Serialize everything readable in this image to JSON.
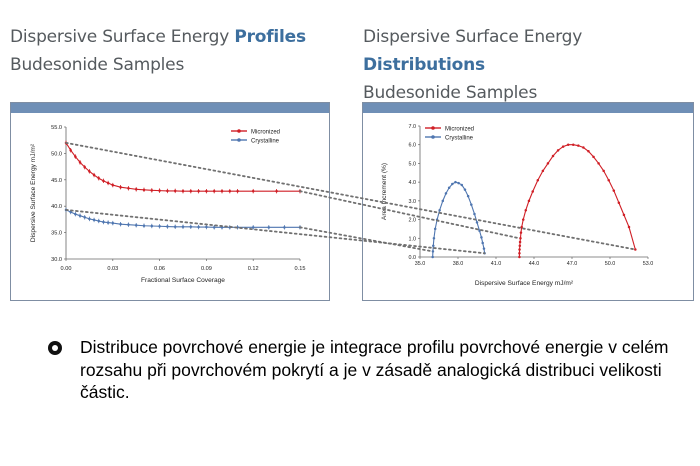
{
  "headings": {
    "left": {
      "line1_prefix": "Dispersive Surface Energy ",
      "line1_keyword": "Profiles",
      "line2": "Budesonide Samples"
    },
    "right": {
      "line1_prefix": "Dispersive Surface Energy ",
      "line1_keyword": "Distributions",
      "line2": "Budesonide Samples"
    }
  },
  "colors": {
    "micronized": "#d01f26",
    "crystalline": "#4f76b0",
    "panel_bar": "#6f8fb6",
    "heading_keyword": "#3d6f9e",
    "connector": "#707070"
  },
  "chart_data": [
    {
      "type": "line",
      "xlabel": "Fractional Surface Coverage",
      "ylabel": "Dispersive Surface Energy  mJ/m²",
      "xlim": [
        0.0,
        0.15
      ],
      "ylim": [
        30.0,
        55.0
      ],
      "xticks": [
        "0.00",
        "0.03",
        "0.06",
        "0.09",
        "0.12",
        "0.15"
      ],
      "yticks": [
        "30.0",
        "35.0",
        "40.0",
        "45.0",
        "50.0",
        "55.0"
      ],
      "legend_position": "top-right",
      "series": [
        {
          "name": "Micronized",
          "color": "#d01f26",
          "x": [
            0.0,
            0.003,
            0.006,
            0.009,
            0.012,
            0.015,
            0.018,
            0.021,
            0.024,
            0.027,
            0.03,
            0.035,
            0.04,
            0.045,
            0.05,
            0.055,
            0.06,
            0.065,
            0.07,
            0.075,
            0.08,
            0.085,
            0.09,
            0.095,
            0.1,
            0.105,
            0.11,
            0.12,
            0.135,
            0.15
          ],
          "y": [
            52.0,
            50.6,
            49.4,
            48.3,
            47.4,
            46.6,
            45.9,
            45.3,
            44.8,
            44.4,
            44.0,
            43.6,
            43.4,
            43.2,
            43.1,
            43.0,
            42.95,
            42.9,
            42.9,
            42.85,
            42.85,
            42.85,
            42.85,
            42.85,
            42.85,
            42.85,
            42.85,
            42.85,
            42.85,
            42.85
          ]
        },
        {
          "name": "Crystalline",
          "color": "#4f76b0",
          "x": [
            0.0,
            0.003,
            0.006,
            0.009,
            0.012,
            0.015,
            0.018,
            0.021,
            0.024,
            0.027,
            0.03,
            0.035,
            0.04,
            0.045,
            0.05,
            0.055,
            0.06,
            0.065,
            0.07,
            0.075,
            0.08,
            0.085,
            0.09,
            0.095,
            0.1,
            0.105,
            0.11,
            0.12,
            0.13,
            0.14,
            0.15
          ],
          "y": [
            39.3,
            38.9,
            38.5,
            38.2,
            37.9,
            37.6,
            37.4,
            37.2,
            37.0,
            36.9,
            36.8,
            36.6,
            36.5,
            36.4,
            36.3,
            36.25,
            36.2,
            36.15,
            36.1,
            36.1,
            36.1,
            36.05,
            36.05,
            36.0,
            36.0,
            36.0,
            36.0,
            36.0,
            36.0,
            36.0,
            36.0
          ]
        }
      ]
    },
    {
      "type": "line",
      "xlabel": "Dispersive Surface Energy  mJ/m²",
      "ylabel": "Area Increment (%)",
      "xlim": [
        35.0,
        53.0
      ],
      "ylim": [
        0.0,
        7.0
      ],
      "xticks": [
        "35.0",
        "38.0",
        "41.0",
        "44.0",
        "47.0",
        "50.0",
        "53.0"
      ],
      "yticks": [
        "0.0",
        "1.0",
        "2.0",
        "3.0",
        "4.0",
        "5.0",
        "6.0",
        "7.0"
      ],
      "legend_position": "top-left",
      "series": [
        {
          "name": "Micronized",
          "color": "#d01f26",
          "x": [
            42.85,
            42.85,
            42.86,
            42.88,
            42.9,
            42.93,
            42.97,
            43.03,
            43.15,
            43.35,
            43.6,
            43.9,
            44.3,
            44.7,
            45.1,
            45.5,
            45.9,
            46.3,
            46.7,
            47.1,
            47.5,
            47.9,
            48.3,
            48.7,
            49.1,
            49.5,
            49.9,
            50.3,
            50.7,
            51.1,
            51.5,
            52.0
          ],
          "y": [
            0.0,
            0.2,
            0.4,
            0.6,
            0.8,
            1.0,
            1.3,
            1.6,
            2.0,
            2.5,
            3.0,
            3.5,
            4.1,
            4.6,
            5.0,
            5.4,
            5.7,
            5.9,
            6.0,
            6.0,
            5.95,
            5.85,
            5.65,
            5.35,
            5.0,
            4.6,
            4.1,
            3.55,
            2.9,
            2.25,
            1.6,
            0.4
          ]
        },
        {
          "name": "Crystalline",
          "color": "#4f76b0",
          "x": [
            36.0,
            36.02,
            36.05,
            36.1,
            36.2,
            36.35,
            36.55,
            36.8,
            37.05,
            37.3,
            37.55,
            37.8,
            38.05,
            38.3,
            38.55,
            38.8,
            39.05,
            39.3,
            39.5,
            39.7,
            39.85,
            39.95,
            40.05,
            40.1
          ],
          "y": [
            0.0,
            0.3,
            0.6,
            1.0,
            1.5,
            2.0,
            2.5,
            3.0,
            3.4,
            3.7,
            3.9,
            4.0,
            3.95,
            3.85,
            3.6,
            3.25,
            2.8,
            2.3,
            1.85,
            1.4,
            1.05,
            0.75,
            0.45,
            0.2
          ]
        }
      ]
    }
  ],
  "bullet_text": "Distribuce povrchové energie je integrace profilu povrchové energie v celém rozsahu při povrchovém pokrytí a je v zásadě analogická distribuci velikosti částic."
}
